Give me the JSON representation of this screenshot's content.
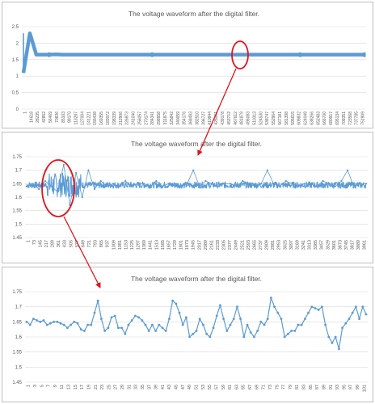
{
  "colors": {
    "series": "#5b9bd5",
    "grid": "#d9d9d9",
    "annotation": "#e0141e",
    "text": "#595959"
  },
  "chart_data": [
    {
      "type": "line",
      "title": "The voltage waveform after the digital filter.",
      "xlabel": "",
      "ylabel": "",
      "ylim": [
        0,
        2.5
      ],
      "yticks": [
        "0",
        "0.5",
        "1",
        "1.5",
        "2",
        "2.5"
      ],
      "grid": true,
      "x_tick_labels": [
        "1",
        "14618",
        "28235",
        "42852",
        "56469",
        "70836",
        "85103",
        "99170",
        "113287",
        "127004",
        "141221",
        "155438",
        "169355",
        "183072",
        "198339",
        "212906",
        "226873",
        "241040",
        "256057",
        "270174",
        "284341",
        "298958",
        "311875",
        "325842",
        "340059",
        "354176",
        "368493",
        "382510",
        "396727",
        "410844",
        "425061",
        "439178",
        "453712",
        "467612",
        "481879",
        "496083",
        "510313",
        "524530",
        "538747",
        "552964",
        "567181",
        "581398",
        "595615",
        "609832",
        "624049",
        "638266",
        "652483",
        "666700",
        "680917",
        "695134",
        "709351",
        "723568",
        "737785",
        "751909"
      ],
      "series": [
        {
          "values": [
            1.1,
            2.3,
            1.65,
            1.65,
            1.65,
            1.66,
            1.65,
            1.65,
            1.65,
            1.65,
            1.65,
            1.65,
            1.65,
            1.65,
            1.65,
            1.65,
            1.65,
            1.65,
            1.65,
            1.65,
            1.65,
            1.65,
            1.65,
            1.65,
            1.65,
            1.65,
            1.65,
            1.65,
            1.65,
            1.65,
            1.65,
            1.65,
            1.65,
            1.65,
            1.65,
            1.65,
            1.65,
            1.65,
            1.65,
            1.65,
            1.65,
            1.65,
            1.65,
            1.65,
            1.65,
            1.65,
            1.65,
            1.65,
            1.65,
            1.65,
            1.65,
            1.65,
            1.65,
            1.65
          ]
        }
      ]
    },
    {
      "type": "line",
      "title": "The voltage waveform after the digital filter.",
      "xlabel": "",
      "ylabel": "",
      "ylim": [
        1.45,
        1.75
      ],
      "yticks": [
        "1.45",
        "1.5",
        "1.55",
        "1.6",
        "1.65",
        "1.7",
        "1.75"
      ],
      "grid": true,
      "x_tick_labels": [
        "1",
        "73",
        "145",
        "217",
        "289",
        "361",
        "433",
        "505",
        "577",
        "649",
        "721",
        "793",
        "865",
        "937",
        "1009",
        "1081",
        "1153",
        "1225",
        "1297",
        "1369",
        "1441",
        "1513",
        "1585",
        "1657",
        "1729",
        "1801",
        "1873",
        "1945",
        "2017",
        "2089",
        "2161",
        "2233",
        "2305",
        "2377",
        "2449",
        "2521",
        "2593",
        "2665",
        "2737",
        "2809",
        "2881",
        "2953",
        "3025",
        "3097",
        "3169",
        "3241",
        "3313",
        "3385",
        "3457",
        "3529",
        "3601",
        "3673",
        "3745",
        "3817",
        "3889",
        "3961"
      ],
      "series": [
        {
          "values": [
            1.64,
            1.65,
            1.63,
            1.66,
            1.64,
            1.62,
            1.72,
            1.57,
            1.69,
            1.6,
            1.7,
            1.63,
            1.66,
            1.64,
            1.65,
            1.64,
            1.66,
            1.64,
            1.65,
            1.65,
            1.64,
            1.66,
            1.64,
            1.65,
            1.65,
            1.64,
            1.65,
            1.7,
            1.64,
            1.66,
            1.65,
            1.64,
            1.65,
            1.65,
            1.64,
            1.66,
            1.65,
            1.64,
            1.65,
            1.7,
            1.65,
            1.64,
            1.66,
            1.65,
            1.64,
            1.65,
            1.65,
            1.64,
            1.66,
            1.65,
            1.64,
            1.66,
            1.7,
            1.64,
            1.65,
            1.65
          ]
        }
      ]
    },
    {
      "type": "line",
      "title": "The voltage waveform after the digital filter.",
      "xlabel": "",
      "ylabel": "",
      "ylim": [
        1.45,
        1.75
      ],
      "yticks": [
        "1.45",
        "1.5",
        "1.55",
        "1.6",
        "1.65",
        "1.7",
        "1.75"
      ],
      "grid": true,
      "x_tick_labels": [
        "1",
        "3",
        "5",
        "7",
        "9",
        "11",
        "13",
        "15",
        "17",
        "19",
        "21",
        "23",
        "25",
        "27",
        "29",
        "31",
        "33",
        "35",
        "37",
        "39",
        "41",
        "43",
        "45",
        "47",
        "49",
        "51",
        "53",
        "55",
        "57",
        "59",
        "61",
        "63",
        "65",
        "67",
        "69",
        "71",
        "73",
        "75",
        "77",
        "79",
        "81",
        "83",
        "85",
        "87",
        "89",
        "91",
        "93",
        "95",
        "97",
        "99",
        "101"
      ],
      "x": [
        1,
        2,
        3,
        4,
        5,
        6,
        7,
        8,
        9,
        10,
        11,
        12,
        13,
        14,
        15,
        16,
        17,
        18,
        19,
        20,
        21,
        22,
        23,
        24,
        25,
        26,
        27,
        28,
        29,
        30,
        31,
        32,
        33,
        34,
        35,
        36,
        37,
        38,
        39,
        40,
        41,
        42,
        43,
        44,
        45,
        46,
        47,
        48,
        49,
        50,
        51,
        52,
        53,
        54,
        55,
        56,
        57,
        58,
        59,
        60,
        61,
        62,
        63,
        64,
        65,
        66,
        67,
        68,
        69,
        70,
        71,
        72,
        73,
        74,
        75,
        76,
        77,
        78,
        79,
        80,
        81,
        82,
        83,
        84,
        85,
        86,
        87,
        88,
        89,
        90,
        91,
        92,
        93,
        94,
        95,
        96,
        97,
        98,
        99,
        100,
        101
      ],
      "series": [
        {
          "values": [
            1.65,
            1.64,
            1.66,
            1.655,
            1.65,
            1.655,
            1.64,
            1.645,
            1.65,
            1.65,
            1.645,
            1.64,
            1.63,
            1.64,
            1.65,
            1.645,
            1.625,
            1.62,
            1.64,
            1.64,
            1.68,
            1.72,
            1.66,
            1.62,
            1.63,
            1.665,
            1.67,
            1.63,
            1.63,
            1.61,
            1.64,
            1.655,
            1.67,
            1.665,
            1.655,
            1.64,
            1.62,
            1.64,
            1.62,
            1.64,
            1.63,
            1.62,
            1.66,
            1.72,
            1.71,
            1.68,
            1.64,
            1.665,
            1.6,
            1.61,
            1.62,
            1.66,
            1.64,
            1.61,
            1.6,
            1.63,
            1.67,
            1.705,
            1.66,
            1.62,
            1.64,
            1.66,
            1.7,
            1.66,
            1.6,
            1.64,
            1.615,
            1.6,
            1.62,
            1.65,
            1.64,
            1.66,
            1.73,
            1.7,
            1.68,
            1.66,
            1.6,
            1.61,
            1.62,
            1.62,
            1.64,
            1.64,
            1.66,
            1.68,
            1.7,
            1.695,
            1.69,
            1.7,
            1.64,
            1.6,
            1.58,
            1.6,
            1.56,
            1.63,
            1.645,
            1.66,
            1.68,
            1.7,
            1.66,
            1.7,
            1.675
          ]
        }
      ]
    }
  ]
}
